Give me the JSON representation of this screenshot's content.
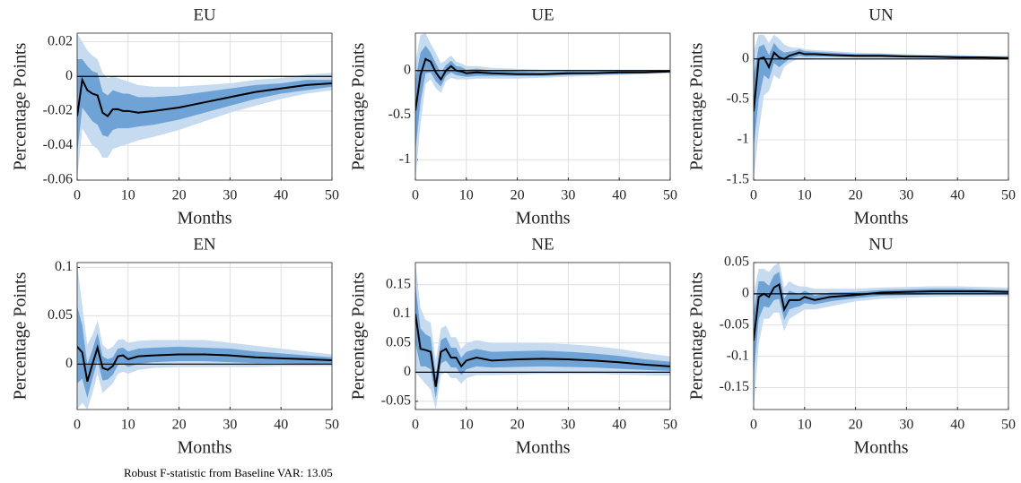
{
  "chart_data": [
    {
      "type": "line",
      "title": "EU",
      "xlabel": "Months",
      "ylabel": "Percentage Points",
      "grid": true,
      "reference_line": 0,
      "x": [
        0,
        1,
        2,
        3,
        4,
        5,
        6,
        7,
        8,
        9,
        10,
        12,
        15,
        20,
        25,
        30,
        35,
        40,
        45,
        50
      ],
      "xlim": [
        0,
        50
      ],
      "xticks": [
        0,
        10,
        20,
        30,
        40,
        50
      ],
      "ylim": [
        -0.06,
        0.025
      ],
      "yticks": [
        -0.06,
        -0.04,
        -0.02,
        0,
        0.02
      ],
      "bands": [
        {
          "color": "#c6dbef",
          "lower": [
            -0.06,
            -0.03,
            -0.035,
            -0.04,
            -0.042,
            -0.047,
            -0.047,
            -0.042,
            -0.041,
            -0.04,
            -0.039,
            -0.037,
            -0.035,
            -0.031,
            -0.026,
            -0.021,
            -0.017,
            -0.013,
            -0.01,
            -0.008
          ],
          "upper": [
            0.025,
            0.02,
            0.015,
            0.012,
            0.01,
            0.002,
            -0.001,
            0.0,
            -0.001,
            -0.002,
            -0.003,
            -0.005,
            -0.006,
            -0.006,
            -0.005,
            -0.004,
            -0.002,
            -0.001,
            0.001,
            0.002
          ]
        },
        {
          "color": "#6fa3d6",
          "lower": [
            -0.045,
            -0.018,
            -0.022,
            -0.026,
            -0.028,
            -0.034,
            -0.035,
            -0.031,
            -0.03,
            -0.03,
            -0.03,
            -0.029,
            -0.028,
            -0.025,
            -0.021,
            -0.017,
            -0.013,
            -0.01,
            -0.008,
            -0.006
          ],
          "upper": [
            0.01,
            0.01,
            0.006,
            0.003,
            0.002,
            -0.009,
            -0.011,
            -0.008,
            -0.009,
            -0.01,
            -0.01,
            -0.012,
            -0.012,
            -0.011,
            -0.009,
            -0.007,
            -0.005,
            -0.004,
            -0.002,
            -0.002
          ]
        }
      ],
      "series": [
        {
          "color": "#000000",
          "values": [
            -0.023,
            -0.002,
            -0.008,
            -0.01,
            -0.011,
            -0.021,
            -0.023,
            -0.019,
            -0.019,
            -0.02,
            -0.02,
            -0.021,
            -0.02,
            -0.018,
            -0.015,
            -0.012,
            -0.009,
            -0.007,
            -0.005,
            -0.004
          ]
        }
      ]
    },
    {
      "type": "line",
      "title": "UE",
      "xlabel": "Months",
      "ylabel": "Percentage Points",
      "grid": true,
      "reference_line": 0,
      "x": [
        0,
        1,
        2,
        3,
        4,
        5,
        6,
        7,
        8,
        9,
        10,
        12,
        15,
        20,
        25,
        30,
        35,
        40,
        45,
        50
      ],
      "xlim": [
        0,
        50
      ],
      "xticks": [
        0,
        10,
        20,
        30,
        40,
        50
      ],
      "ylim": [
        -1.23,
        0.42
      ],
      "yticks": [
        -1,
        -0.5,
        0
      ],
      "bands": [
        {
          "color": "#c6dbef",
          "lower": [
            -1.23,
            -0.6,
            -0.15,
            -0.1,
            -0.2,
            -0.25,
            -0.12,
            -0.08,
            -0.1,
            -0.1,
            -0.1,
            -0.09,
            -0.09,
            -0.09,
            -0.08,
            -0.07,
            -0.06,
            -0.05,
            -0.04,
            -0.03
          ],
          "upper": [
            0.1,
            0.4,
            0.42,
            0.3,
            0.2,
            0.08,
            0.12,
            0.17,
            0.1,
            0.08,
            0.05,
            0.05,
            0.03,
            0.02,
            0.01,
            0.01,
            0.01,
            0.01,
            0.01,
            0.01
          ]
        },
        {
          "color": "#6fa3d6",
          "lower": [
            -0.9,
            -0.35,
            -0.03,
            -0.02,
            -0.12,
            -0.18,
            -0.06,
            -0.02,
            -0.05,
            -0.06,
            -0.07,
            -0.06,
            -0.06,
            -0.06,
            -0.06,
            -0.05,
            -0.04,
            -0.04,
            -0.03,
            -0.02
          ],
          "upper": [
            -0.1,
            0.2,
            0.28,
            0.2,
            0.08,
            -0.02,
            0.06,
            0.11,
            0.05,
            0.04,
            0.01,
            0.02,
            0.0,
            -0.01,
            -0.02,
            -0.01,
            -0.01,
            0.0,
            0.0,
            0.0
          ]
        }
      ],
      "series": [
        {
          "color": "#000000",
          "values": [
            -0.45,
            -0.05,
            0.13,
            0.1,
            -0.02,
            -0.1,
            0.0,
            0.05,
            0.0,
            -0.01,
            -0.03,
            -0.02,
            -0.03,
            -0.04,
            -0.04,
            -0.03,
            -0.03,
            -0.02,
            -0.02,
            -0.01
          ]
        }
      ]
    },
    {
      "type": "line",
      "title": "UN",
      "xlabel": "Months",
      "ylabel": "Percentage Points",
      "grid": true,
      "reference_line": 0,
      "x": [
        0,
        1,
        2,
        3,
        4,
        5,
        6,
        7,
        8,
        9,
        10,
        12,
        15,
        20,
        25,
        30,
        35,
        40,
        45,
        50
      ],
      "xlim": [
        0,
        50
      ],
      "xticks": [
        0,
        10,
        20,
        30,
        40,
        50
      ],
      "ylim": [
        -1.5,
        0.32
      ],
      "yticks": [
        -1.5,
        -1,
        -0.5,
        0
      ],
      "bands": [
        {
          "color": "#c6dbef",
          "lower": [
            -1.5,
            -0.9,
            -0.45,
            -0.4,
            -0.2,
            -0.25,
            -0.1,
            -0.05,
            -0.02,
            0.0,
            0.0,
            0.01,
            0.01,
            0.01,
            0.01,
            0.0,
            0.0,
            0.0,
            -0.01,
            -0.01
          ],
          "upper": [
            0.1,
            0.3,
            0.3,
            0.2,
            0.3,
            0.25,
            0.18,
            0.15,
            0.14,
            0.14,
            0.12,
            0.11,
            0.1,
            0.08,
            0.07,
            0.06,
            0.05,
            0.05,
            0.04,
            0.04
          ]
        },
        {
          "color": "#6fa3d6",
          "lower": [
            -1.1,
            -0.5,
            -0.2,
            -0.25,
            -0.05,
            -0.1,
            -0.05,
            0.0,
            0.02,
            0.04,
            0.03,
            0.03,
            0.03,
            0.02,
            0.02,
            0.02,
            0.01,
            0.01,
            0.01,
            0.0
          ],
          "upper": [
            -0.2,
            0.15,
            0.18,
            0.05,
            0.2,
            0.12,
            0.08,
            0.09,
            0.1,
            0.12,
            0.1,
            0.09,
            0.08,
            0.06,
            0.06,
            0.05,
            0.04,
            0.04,
            0.03,
            0.03
          ]
        }
      ],
      "series": [
        {
          "color": "#000000",
          "values": [
            -0.65,
            0.0,
            0.02,
            -0.1,
            0.08,
            0.02,
            0.0,
            0.04,
            0.06,
            0.08,
            0.06,
            0.06,
            0.05,
            0.04,
            0.04,
            0.03,
            0.03,
            0.02,
            0.02,
            0.01
          ]
        }
      ]
    },
    {
      "type": "line",
      "title": "EN",
      "xlabel": "Months",
      "ylabel": "Percentage Points",
      "grid": true,
      "reference_line": 0,
      "x": [
        0,
        1,
        2,
        3,
        4,
        5,
        6,
        7,
        8,
        9,
        10,
        12,
        15,
        20,
        25,
        30,
        35,
        40,
        45,
        50
      ],
      "xlim": [
        0,
        50
      ],
      "xticks": [
        0,
        10,
        20,
        30,
        40,
        50
      ],
      "ylim": [
        -0.047,
        0.105
      ],
      "yticks": [
        0,
        0.05,
        0.1
      ],
      "bands": [
        {
          "color": "#c6dbef",
          "lower": [
            -0.047,
            -0.04,
            -0.047,
            -0.03,
            -0.01,
            -0.03,
            -0.025,
            -0.02,
            -0.01,
            -0.008,
            -0.01,
            -0.006,
            -0.004,
            -0.003,
            -0.003,
            -0.003,
            -0.003,
            -0.002,
            -0.002,
            -0.002
          ],
          "upper": [
            0.105,
            0.06,
            0.02,
            0.03,
            0.045,
            0.02,
            0.015,
            0.018,
            0.025,
            0.026,
            0.022,
            0.024,
            0.025,
            0.025,
            0.025,
            0.022,
            0.019,
            0.016,
            0.013,
            0.01
          ]
        },
        {
          "color": "#6fa3d6",
          "lower": [
            -0.02,
            -0.015,
            -0.035,
            -0.015,
            0.003,
            -0.017,
            -0.016,
            -0.011,
            -0.001,
            0.0,
            -0.003,
            0.0,
            0.002,
            0.003,
            0.003,
            0.002,
            0.001,
            0.001,
            0.0,
            0.0
          ],
          "upper": [
            0.06,
            0.04,
            0.0,
            0.015,
            0.032,
            0.008,
            0.005,
            0.007,
            0.016,
            0.017,
            0.013,
            0.016,
            0.017,
            0.018,
            0.017,
            0.016,
            0.013,
            0.011,
            0.009,
            0.007
          ]
        }
      ],
      "series": [
        {
          "color": "#000000",
          "values": [
            0.018,
            0.012,
            -0.018,
            0.0,
            0.017,
            -0.004,
            -0.006,
            -0.002,
            0.008,
            0.009,
            0.005,
            0.008,
            0.009,
            0.01,
            0.01,
            0.009,
            0.007,
            0.006,
            0.005,
            0.004
          ]
        }
      ]
    },
    {
      "type": "line",
      "title": "NE",
      "xlabel": "Months",
      "ylabel": "Percentage Points",
      "grid": true,
      "reference_line": 0,
      "x": [
        0,
        1,
        2,
        3,
        4,
        5,
        6,
        7,
        8,
        9,
        10,
        12,
        15,
        20,
        25,
        30,
        35,
        40,
        45,
        50
      ],
      "xlim": [
        0,
        50
      ],
      "xticks": [
        0,
        10,
        20,
        30,
        40,
        50
      ],
      "ylim": [
        -0.064,
        0.188
      ],
      "yticks": [
        -0.05,
        0,
        0.05,
        0.1,
        0.15
      ],
      "bands": [
        {
          "color": "#c6dbef",
          "lower": [
            0.0,
            -0.01,
            -0.02,
            -0.03,
            -0.064,
            -0.005,
            0.0,
            -0.01,
            -0.01,
            -0.02,
            -0.01,
            -0.005,
            -0.005,
            -0.004,
            -0.003,
            -0.003,
            -0.003,
            -0.004,
            -0.005,
            -0.006
          ],
          "upper": [
            0.188,
            0.11,
            0.09,
            0.085,
            0.02,
            0.075,
            0.08,
            0.06,
            0.06,
            0.04,
            0.05,
            0.055,
            0.05,
            0.05,
            0.05,
            0.048,
            0.045,
            0.04,
            0.033,
            0.027
          ]
        },
        {
          "color": "#6fa3d6",
          "lower": [
            0.05,
            0.01,
            0.01,
            0.005,
            -0.045,
            0.015,
            0.02,
            0.008,
            0.008,
            -0.005,
            0.005,
            0.01,
            0.008,
            0.009,
            0.01,
            0.009,
            0.008,
            0.006,
            0.004,
            0.002
          ],
          "upper": [
            0.15,
            0.075,
            0.065,
            0.06,
            -0.005,
            0.055,
            0.06,
            0.042,
            0.042,
            0.025,
            0.035,
            0.04,
            0.035,
            0.036,
            0.037,
            0.035,
            0.032,
            0.028,
            0.022,
            0.018
          ]
        }
      ],
      "series": [
        {
          "color": "#000000",
          "values": [
            0.1,
            0.04,
            0.038,
            0.035,
            -0.025,
            0.035,
            0.04,
            0.025,
            0.025,
            0.01,
            0.02,
            0.025,
            0.02,
            0.022,
            0.023,
            0.022,
            0.02,
            0.017,
            0.013,
            0.01
          ]
        }
      ]
    },
    {
      "type": "line",
      "title": "NU",
      "xlabel": "Months",
      "ylabel": "Percentage Points",
      "grid": true,
      "reference_line": 0,
      "x": [
        0,
        1,
        2,
        3,
        4,
        5,
        6,
        7,
        8,
        9,
        10,
        12,
        15,
        20,
        25,
        30,
        35,
        40,
        45,
        50
      ],
      "xlim": [
        0,
        50
      ],
      "xticks": [
        0,
        10,
        20,
        30,
        40,
        50
      ],
      "ylim": [
        -0.185,
        0.05
      ],
      "yticks": [
        -0.15,
        -0.1,
        -0.05,
        0,
        0.05
      ],
      "bands": [
        {
          "color": "#c6dbef",
          "lower": [
            -0.185,
            -0.08,
            -0.04,
            -0.04,
            -0.03,
            -0.03,
            -0.06,
            -0.04,
            -0.035,
            -0.03,
            -0.025,
            -0.025,
            -0.02,
            -0.012,
            -0.008,
            -0.006,
            -0.005,
            -0.004,
            -0.004,
            -0.004
          ],
          "upper": [
            0.0,
            0.04,
            0.04,
            0.035,
            0.045,
            0.05,
            0.01,
            0.02,
            0.015,
            0.012,
            0.012,
            0.008,
            0.008,
            0.008,
            0.01,
            0.011,
            0.012,
            0.012,
            0.011,
            0.01
          ]
        },
        {
          "color": "#6fa3d6",
          "lower": [
            -0.13,
            -0.04,
            -0.02,
            -0.022,
            -0.01,
            -0.008,
            -0.042,
            -0.025,
            -0.022,
            -0.02,
            -0.015,
            -0.017,
            -0.012,
            -0.007,
            -0.003,
            -0.002,
            -0.001,
            0.0,
            0.0,
            0.0
          ],
          "upper": [
            -0.03,
            0.02,
            0.02,
            0.013,
            0.03,
            0.035,
            -0.008,
            0.005,
            0.002,
            0.0,
            0.005,
            -0.003,
            0.002,
            0.003,
            0.006,
            0.007,
            0.008,
            0.008,
            0.007,
            0.006
          ]
        }
      ],
      "series": [
        {
          "color": "#000000",
          "values": [
            -0.075,
            -0.005,
            0.0,
            -0.005,
            0.01,
            0.015,
            -0.025,
            -0.01,
            -0.01,
            -0.01,
            -0.005,
            -0.01,
            -0.005,
            -0.002,
            0.002,
            0.003,
            0.004,
            0.004,
            0.004,
            0.003
          ]
        }
      ]
    }
  ],
  "footnote": "Robust F-statistic from Baseline VAR: 13.05"
}
